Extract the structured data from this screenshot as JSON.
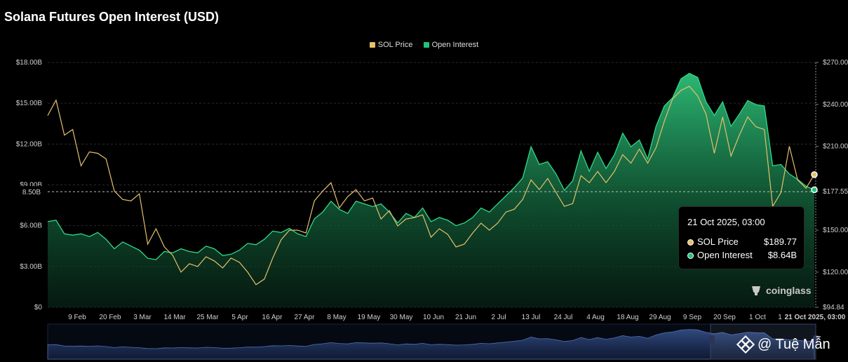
{
  "title": "Solana Futures Open Interest (USD)",
  "legend": [
    {
      "name": "SOL Price",
      "color": "#e4c16b"
    },
    {
      "name": "Open Interest",
      "color": "#21c47d"
    }
  ],
  "tooltip": {
    "title": "21 Oct 2025, 03:00",
    "rows": [
      {
        "label": "SOL Price",
        "value": "$189.77",
        "color": "#e4c16b"
      },
      {
        "label": "Open Interest",
        "value": "$8.64B",
        "color": "#21c47d"
      }
    ]
  },
  "brand": "coinglass",
  "watermark": "@ Tuệ Mẫn",
  "crosshair": {
    "left_label": "8.50B",
    "right_label": "177.55"
  },
  "chart_data": {
    "type": "area",
    "title": "Solana Futures Open Interest (USD)",
    "x_labels": [
      "9 Feb",
      "20 Feb",
      "3 Mar",
      "14 Mar",
      "25 Mar",
      "5 Apr",
      "16 Apr",
      "27 Apr",
      "8 May",
      "19 May",
      "30 May",
      "10 Jun",
      "21 Jun",
      "2 Jul",
      "13 Jul",
      "24 Jul",
      "4 Aug",
      "18 Aug",
      "29 Aug",
      "9 Sep",
      "20 Sep",
      "1 Oct",
      "1",
      "21 Oct 2025, 03:00"
    ],
    "y_left_ticks": [
      "$0",
      "$3.00B",
      "$6.00B",
      "$9.00B",
      "$12.00B",
      "$15.00B",
      "$18.00B"
    ],
    "y_left_range": [
      0,
      18
    ],
    "y_right_ticks": [
      "$94.84",
      "$120.00",
      "$150.00",
      "$177.55",
      "$210.00",
      "$240.00",
      "$270.00"
    ],
    "y_right_range": [
      94.84,
      270
    ],
    "series": [
      {
        "name": "Open Interest",
        "unit": "B USD",
        "values": [
          6.3,
          6.4,
          5.4,
          5.3,
          5.4,
          5.2,
          5.5,
          5.0,
          4.3,
          4.8,
          4.5,
          4.2,
          3.6,
          3.5,
          4.1,
          4.0,
          4.3,
          4.1,
          4.0,
          4.5,
          4.3,
          3.8,
          3.9,
          4.2,
          4.7,
          4.6,
          5.0,
          5.6,
          5.5,
          5.8,
          5.4,
          5.2,
          6.5,
          7.0,
          7.8,
          7.2,
          6.9,
          7.8,
          7.6,
          7.4,
          7.6,
          7.0,
          6.2,
          6.9,
          6.6,
          7.3,
          6.3,
          6.6,
          6.4,
          6.0,
          6.2,
          6.6,
          7.3,
          7.0,
          7.6,
          8.2,
          8.8,
          9.5,
          11.8,
          10.5,
          10.7,
          9.8,
          8.6,
          9.3,
          11.5,
          10.0,
          11.4,
          10.2,
          11.2,
          12.8,
          11.8,
          12.3,
          10.9,
          13.3,
          14.8,
          15.4,
          16.8,
          17.2,
          16.9,
          15.1,
          14.1,
          15.1,
          13.3,
          14.2,
          15.2,
          14.9,
          14.8,
          10.4,
          10.5,
          9.8,
          9.4,
          8.9,
          8.64
        ]
      },
      {
        "name": "SOL Price",
        "unit": "USD",
        "values": [
          232,
          243,
          218,
          222,
          196,
          206,
          205,
          201,
          178,
          172,
          171,
          176,
          140,
          151,
          138,
          132,
          120,
          126,
          124,
          131,
          128,
          123,
          130,
          127,
          120,
          111,
          115,
          130,
          143,
          150,
          150,
          148,
          171,
          178,
          184,
          166,
          174,
          179,
          171,
          173,
          158,
          164,
          153,
          158,
          159,
          161,
          145,
          151,
          147,
          138,
          140,
          148,
          155,
          150,
          155,
          163,
          165,
          172,
          186,
          179,
          187,
          177,
          167,
          169,
          189,
          184,
          192,
          184,
          192,
          204,
          198,
          208,
          198,
          209,
          228,
          244,
          250,
          253,
          246,
          233,
          205,
          231,
          203,
          218,
          231,
          224,
          222,
          167,
          177,
          210,
          186,
          180,
          189.77
        ]
      }
    ],
    "grid": true,
    "legend_position": "top-center"
  }
}
